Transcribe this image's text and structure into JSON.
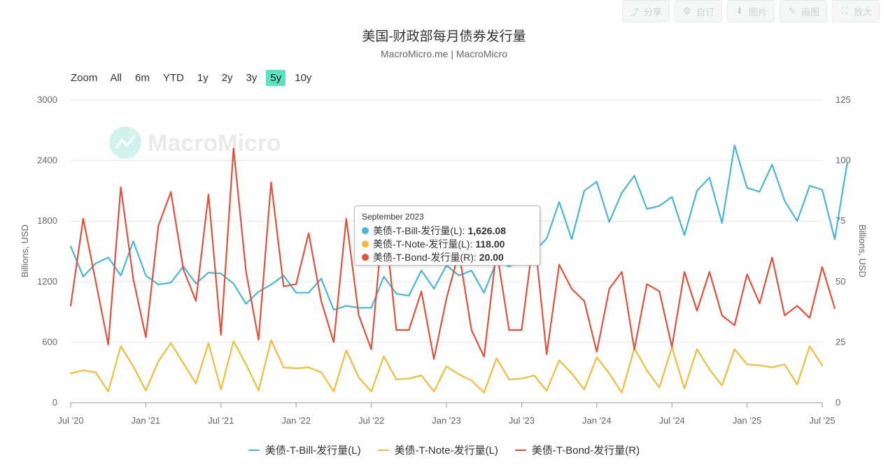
{
  "toolbar": {
    "items": [
      {
        "label": "分享",
        "icon": "share-icon"
      },
      {
        "label": "自订",
        "icon": "settings-icon"
      },
      {
        "label": "图片",
        "icon": "download-icon"
      },
      {
        "label": "画图",
        "icon": "pencil-icon"
      },
      {
        "label": "放大",
        "icon": "expand-icon"
      }
    ]
  },
  "range_selector": {
    "label": "Zoom",
    "options": [
      "All",
      "6m",
      "YTD",
      "1y",
      "2y",
      "3y",
      "5y",
      "10y"
    ],
    "active": "5y"
  },
  "watermark": "MacroMicro",
  "tooltip": {
    "date": "September 2023",
    "rows": [
      {
        "label": "美债-T-Bill-发行量(L):",
        "value": "1,626.08",
        "color": "#4ab4d9"
      },
      {
        "label": "美债-T-Note-发行量(L):",
        "value": "118.00",
        "color": "#f3bb3b"
      },
      {
        "label": "美债-T-Bond-发行量(R):",
        "value": "20.00",
        "color": "#e0533a"
      }
    ]
  },
  "chart_data": {
    "type": "line",
    "title": "美国-财政部每月债券发行量",
    "subtitle": "MacroMicro.me | MacroMicro",
    "ylabel_left": "Billions, USD",
    "ylabel_right": "Billions, USD",
    "ylim_left": [
      0,
      3000
    ],
    "ylim_right": [
      0,
      125
    ],
    "yticks_left": [
      "0",
      "600",
      "1200",
      "1800",
      "2400",
      "3000"
    ],
    "yticks_right": [
      "0",
      "25",
      "50",
      "75",
      "100",
      "125"
    ],
    "x_start": "2020-07",
    "x_ticks": [
      "Jul '20",
      "Jan '21",
      "Jul '21",
      "Jan '22",
      "Jul '22",
      "Jan '23",
      "Jul '23",
      "Jan '24",
      "Jul '24",
      "Jan '25",
      "Jul '25"
    ],
    "grid": true,
    "legend_position": "bottom-center",
    "series": [
      {
        "name": "美债-T-Bill-发行量(L)",
        "axis": "left",
        "color": "#4ab4d9",
        "values": [
          1550,
          1250,
          1380,
          1440,
          1260,
          1600,
          1260,
          1170,
          1190,
          1350,
          1180,
          1290,
          1280,
          1180,
          980,
          1100,
          1170,
          1260,
          1090,
          1090,
          1230,
          920,
          960,
          940,
          940,
          1250,
          1080,
          1060,
          1310,
          1130,
          1360,
          1260,
          1310,
          1090,
          1400,
          1350,
          1400,
          1500,
          1626,
          1990,
          1620,
          2100,
          2190,
          1790,
          2080,
          2250,
          1920,
          1950,
          2040,
          1660,
          2100,
          2230,
          1780,
          2550,
          2130,
          2090,
          2360,
          2000,
          1800,
          2150,
          2110,
          1620,
          2380
        ]
      },
      {
        "name": "美债-T-Note-发行量(L)",
        "axis": "left",
        "color": "#f3bb3b",
        "values": [
          290,
          320,
          300,
          110,
          560,
          360,
          120,
          410,
          590,
          390,
          190,
          590,
          130,
          610,
          380,
          120,
          620,
          350,
          340,
          350,
          300,
          110,
          520,
          250,
          110,
          460,
          230,
          240,
          270,
          110,
          360,
          280,
          220,
          100,
          440,
          230,
          240,
          270,
          118,
          420,
          290,
          130,
          450,
          290,
          100,
          540,
          320,
          150,
          550,
          140,
          530,
          330,
          170,
          530,
          380,
          370,
          350,
          380,
          180,
          560,
          370
        ]
      },
      {
        "name": "美债-T-Bond-发行量(R)",
        "axis": "right",
        "color": "#e0533a",
        "values": [
          40,
          76,
          50,
          24,
          89,
          51,
          27,
          73,
          87,
          55,
          42,
          86,
          28,
          105,
          54,
          26,
          91,
          48,
          49,
          70,
          42,
          25,
          76,
          36,
          22,
          79,
          30,
          30,
          46,
          18,
          43,
          62,
          30,
          19,
          63,
          30,
          30,
          70,
          20,
          57,
          47,
          42,
          21,
          47,
          54,
          22,
          49,
          46,
          23,
          54,
          38,
          54,
          36,
          32,
          53,
          41,
          60,
          36,
          40,
          35,
          56,
          39
        ]
      }
    ]
  }
}
